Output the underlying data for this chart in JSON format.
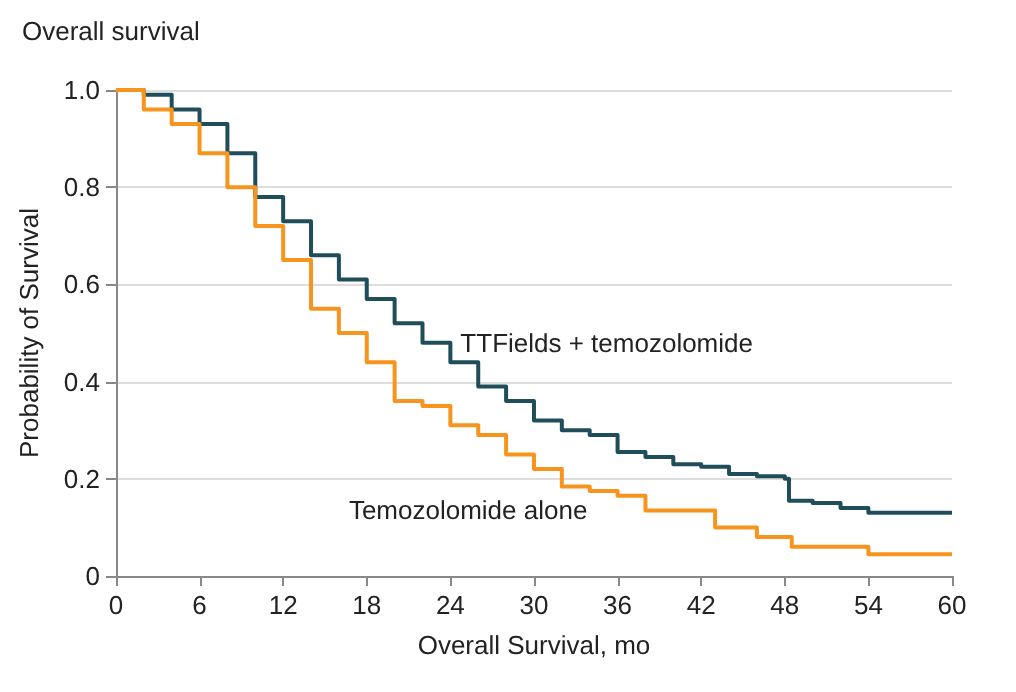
{
  "chart_data": {
    "type": "step",
    "title": "Overall survival",
    "xlabel": "Overall Survival, mo",
    "ylabel": "Probability of Survival",
    "xlim": [
      0,
      60
    ],
    "xticks": [
      0,
      6,
      12,
      18,
      24,
      30,
      36,
      42,
      48,
      54,
      60
    ],
    "ylim": [
      0,
      1
    ],
    "yticks": [
      {
        "value": 0,
        "label": "0"
      },
      0.2,
      0.4,
      0.6,
      0.8,
      {
        "value": 1,
        "label": "1.0"
      }
    ],
    "grid": "y",
    "series": [
      {
        "name": "TTFields + temozolomide",
        "color": "#1f4e5a",
        "x": [
          0,
          2,
          4,
          6,
          8,
          10,
          12,
          14,
          16,
          18,
          20,
          22,
          24,
          26,
          28,
          30,
          32,
          34,
          36,
          38,
          40,
          42,
          44,
          46,
          48,
          48.3,
          50,
          52,
          54,
          60
        ],
        "values": [
          1,
          0.99,
          0.96,
          0.93,
          0.87,
          0.78,
          0.73,
          0.66,
          0.61,
          0.57,
          0.52,
          0.48,
          0.44,
          0.39,
          0.36,
          0.32,
          0.3,
          0.29,
          0.255,
          0.245,
          0.23,
          0.225,
          0.21,
          0.205,
          0.2,
          0.155,
          0.15,
          0.14,
          0.13,
          0.13
        ]
      },
      {
        "name": "Temozolomide alone",
        "color": "#f7941d",
        "x": [
          0,
          2,
          4,
          6,
          8,
          10,
          12,
          14,
          16,
          18,
          20,
          22,
          24,
          26,
          28,
          30,
          32,
          34,
          36,
          38,
          42,
          43,
          46,
          48.5,
          54,
          60
        ],
        "values": [
          1,
          0.96,
          0.93,
          0.87,
          0.8,
          0.72,
          0.65,
          0.55,
          0.5,
          0.44,
          0.36,
          0.35,
          0.31,
          0.29,
          0.25,
          0.22,
          0.184,
          0.175,
          0.165,
          0.135,
          0.135,
          0.1,
          0.08,
          0.06,
          0.045,
          0.045
        ]
      }
    ]
  }
}
